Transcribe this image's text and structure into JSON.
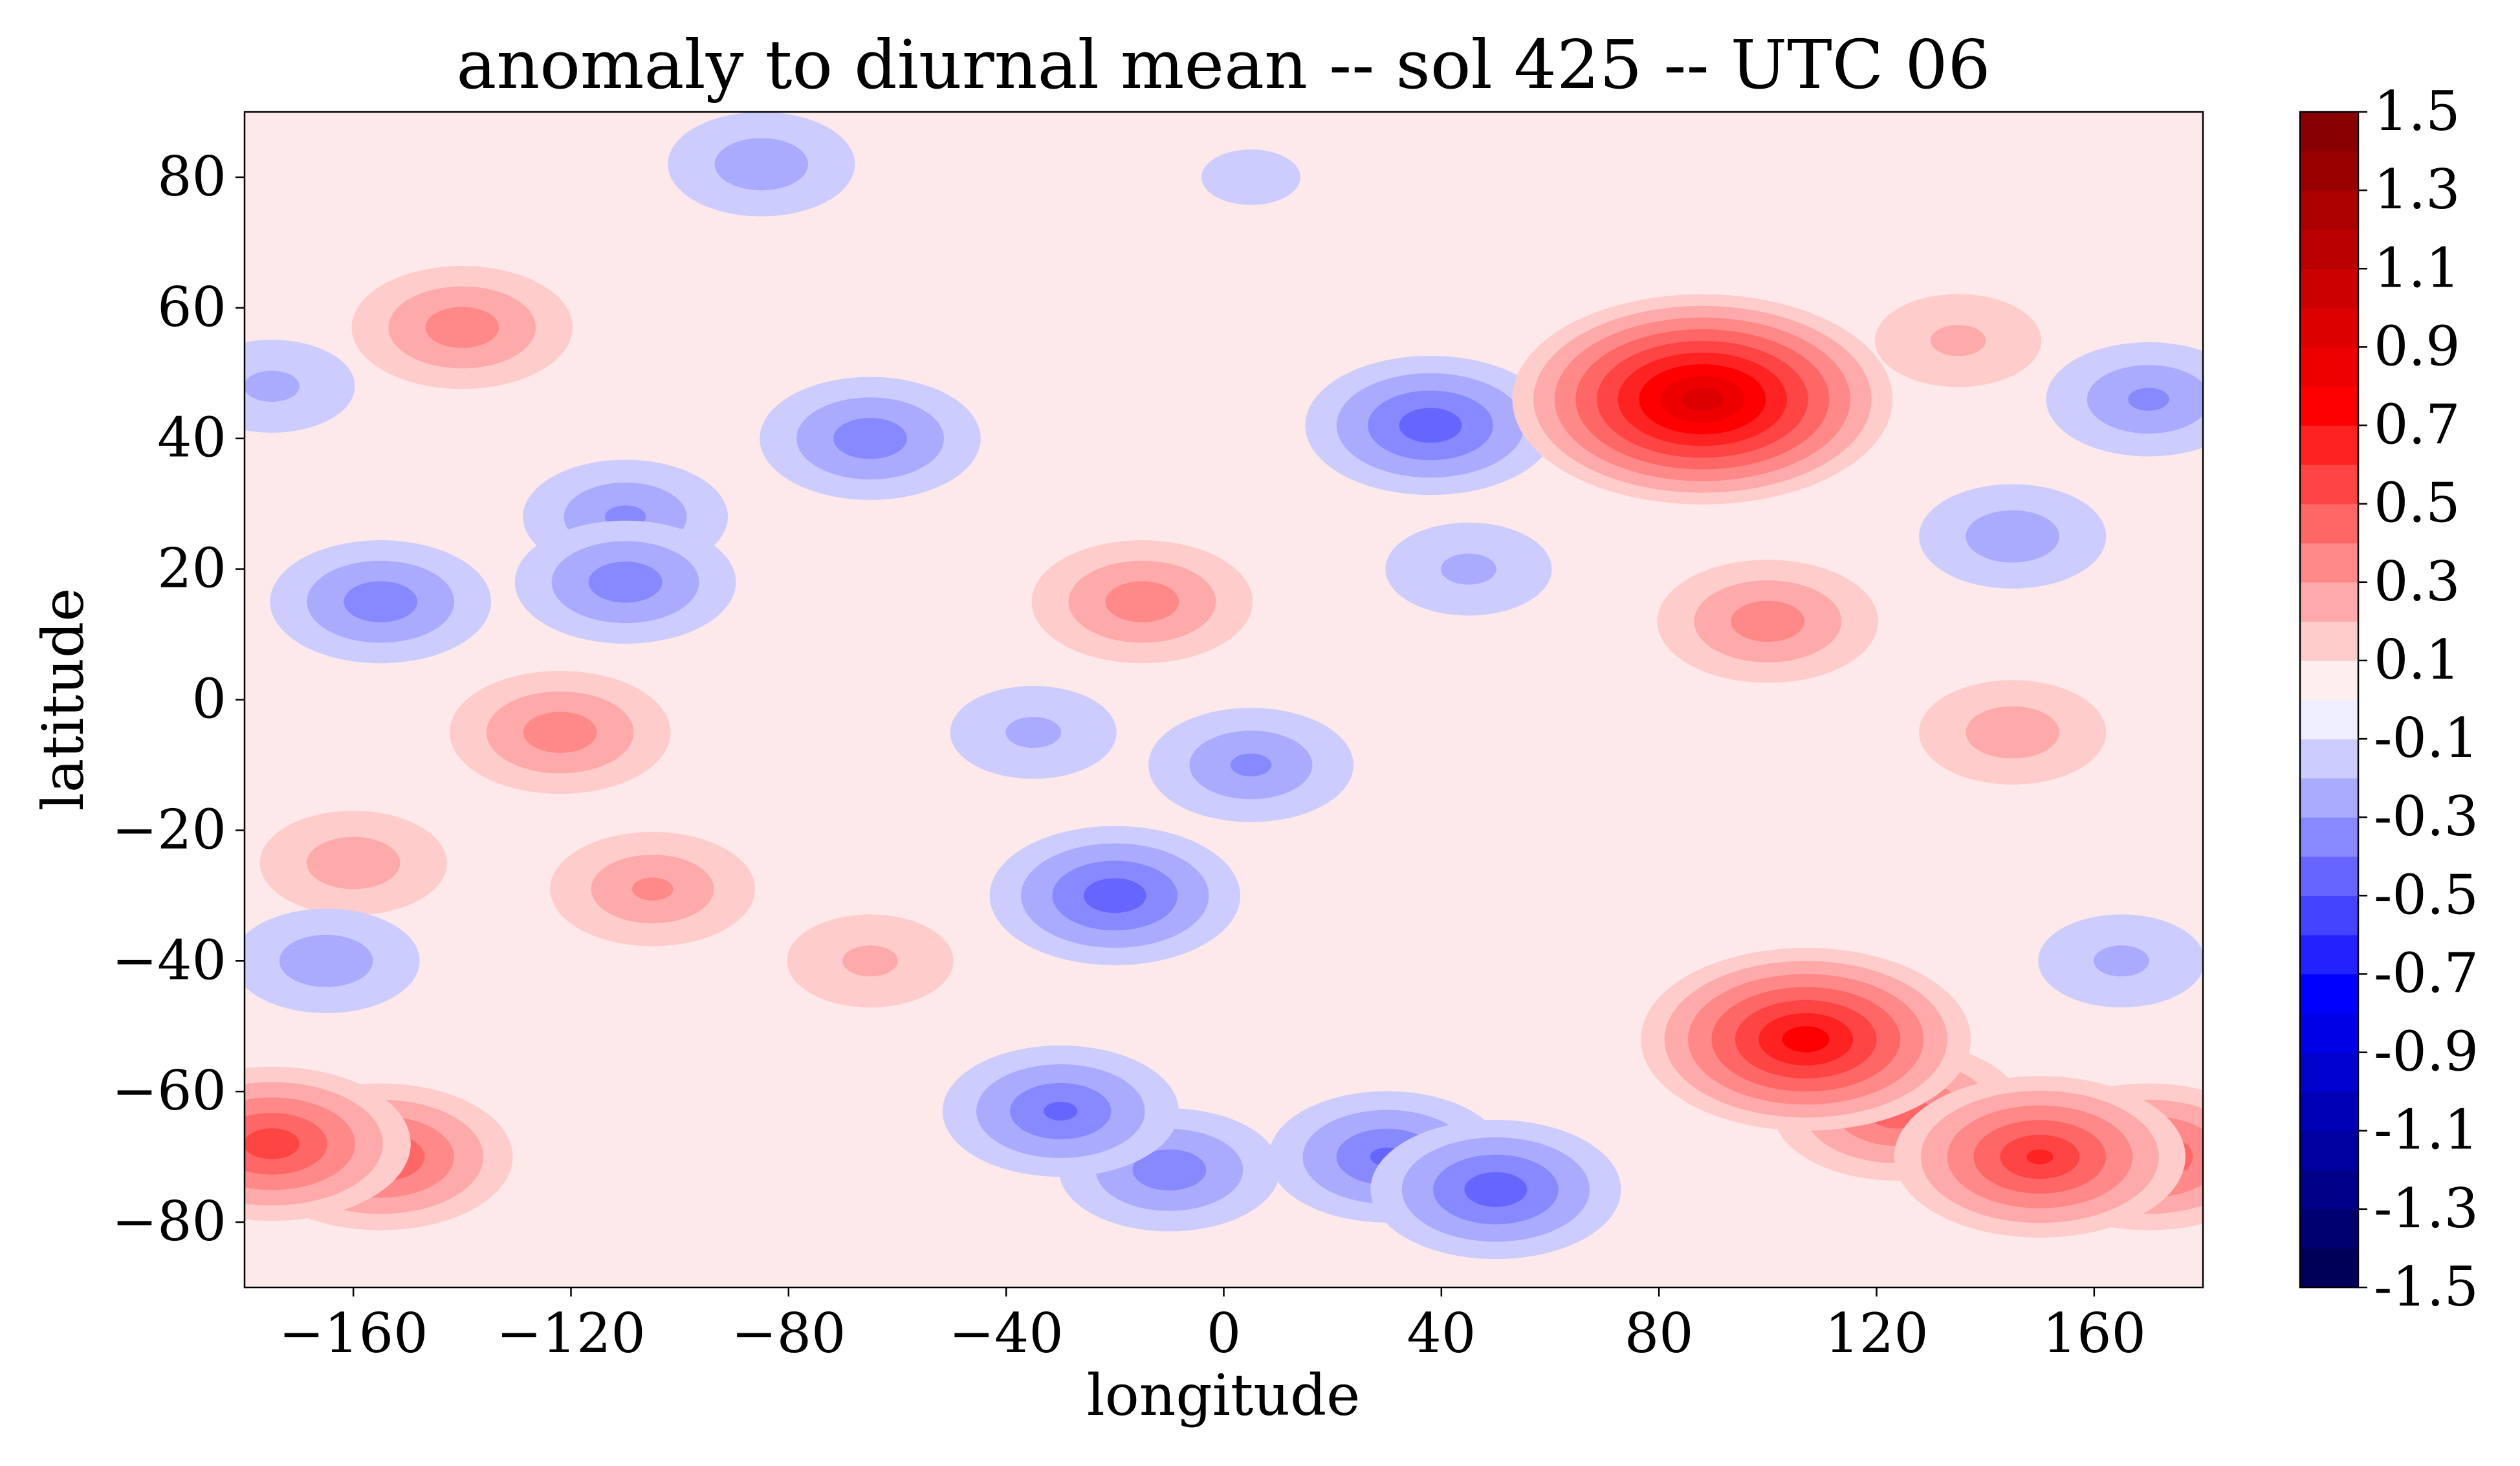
{
  "chart_data": {
    "type": "heatmap",
    "subtype": "filled-contour",
    "title": "anomaly to diurnal mean -- sol 425 -- UTC 06",
    "xlabel": "longitude",
    "ylabel": "latitude",
    "xlim": [
      -180,
      180
    ],
    "ylim": [
      -90,
      90
    ],
    "xticks": [
      -160,
      -120,
      -80,
      -40,
      0,
      40,
      80,
      120,
      160
    ],
    "xtick_labels": [
      "−160",
      "−120",
      "−80",
      "−40",
      "0",
      "40",
      "80",
      "120",
      "160"
    ],
    "yticks": [
      80,
      60,
      40,
      20,
      0,
      -20,
      -40,
      -60,
      -80
    ],
    "ytick_labels": [
      "80",
      "60",
      "40",
      "20",
      "0",
      "−20",
      "−40",
      "−60",
      "−80"
    ],
    "colormap": "seismic",
    "colorbar": {
      "range": [
        -1.5,
        1.5
      ],
      "step": 0.1,
      "ticks": [
        1.5,
        1.3,
        1.1,
        0.9,
        0.7,
        0.5,
        0.3,
        0.1,
        -0.1,
        -0.3,
        -0.5,
        -0.7,
        -0.9,
        -1.1,
        -1.3,
        -1.5
      ],
      "tick_labels": [
        "1.5",
        "1.3",
        "1.1",
        "0.9",
        "0.7",
        "0.5",
        "0.3",
        "0.1",
        "-0.1",
        "-0.3",
        "-0.5",
        "-0.7",
        "-0.9",
        "-1.1",
        "-1.3",
        "-1.5"
      ]
    },
    "features": [
      {
        "lon": 88,
        "lat": 46,
        "value": 0.95
      },
      {
        "lon": 107,
        "lat": -52,
        "value": 0.75
      },
      {
        "lon": 124,
        "lat": -63,
        "value": 0.45
      },
      {
        "lon": 150,
        "lat": -70,
        "value": 0.6
      },
      {
        "lon": 170,
        "lat": -70,
        "value": 0.5
      },
      {
        "lon": -175,
        "lat": -68,
        "value": 0.55
      },
      {
        "lon": -155,
        "lat": -70,
        "value": 0.5
      },
      {
        "lon": -140,
        "lat": 57,
        "value": 0.35
      },
      {
        "lon": -122,
        "lat": -5,
        "value": 0.35
      },
      {
        "lon": -160,
        "lat": -25,
        "value": 0.25
      },
      {
        "lon": -105,
        "lat": -29,
        "value": 0.3
      },
      {
        "lon": -15,
        "lat": 15,
        "value": 0.35
      },
      {
        "lon": 100,
        "lat": 12,
        "value": 0.35
      },
      {
        "lon": 135,
        "lat": 55,
        "value": 0.2
      },
      {
        "lon": 145,
        "lat": -5,
        "value": 0.25
      },
      {
        "lon": -65,
        "lat": -40,
        "value": 0.2
      },
      {
        "lon": 38,
        "lat": 42,
        "value": -0.45
      },
      {
        "lon": -20,
        "lat": -30,
        "value": -0.45
      },
      {
        "lon": 30,
        "lat": -70,
        "value": -0.4
      },
      {
        "lon": 50,
        "lat": -75,
        "value": -0.45
      },
      {
        "lon": -30,
        "lat": -63,
        "value": -0.4
      },
      {
        "lon": -10,
        "lat": -72,
        "value": -0.35
      },
      {
        "lon": -155,
        "lat": 15,
        "value": -0.35
      },
      {
        "lon": -110,
        "lat": 18,
        "value": -0.35
      },
      {
        "lon": -110,
        "lat": 28,
        "value": -0.3
      },
      {
        "lon": -65,
        "lat": 40,
        "value": -0.35
      },
      {
        "lon": 5,
        "lat": -10,
        "value": -0.3
      },
      {
        "lon": -35,
        "lat": -5,
        "value": -0.2
      },
      {
        "lon": -85,
        "lat": 82,
        "value": -0.25
      },
      {
        "lon": 170,
        "lat": 46,
        "value": -0.3
      },
      {
        "lon": 145,
        "lat": 25,
        "value": -0.25
      },
      {
        "lon": -175,
        "lat": 48,
        "value": -0.2
      },
      {
        "lon": -165,
        "lat": -40,
        "value": -0.25
      },
      {
        "lon": 165,
        "lat": -40,
        "value": -0.2
      },
      {
        "lon": 45,
        "lat": 20,
        "value": -0.2
      },
      {
        "lon": 5,
        "lat": 80,
        "value": -0.1
      }
    ]
  }
}
